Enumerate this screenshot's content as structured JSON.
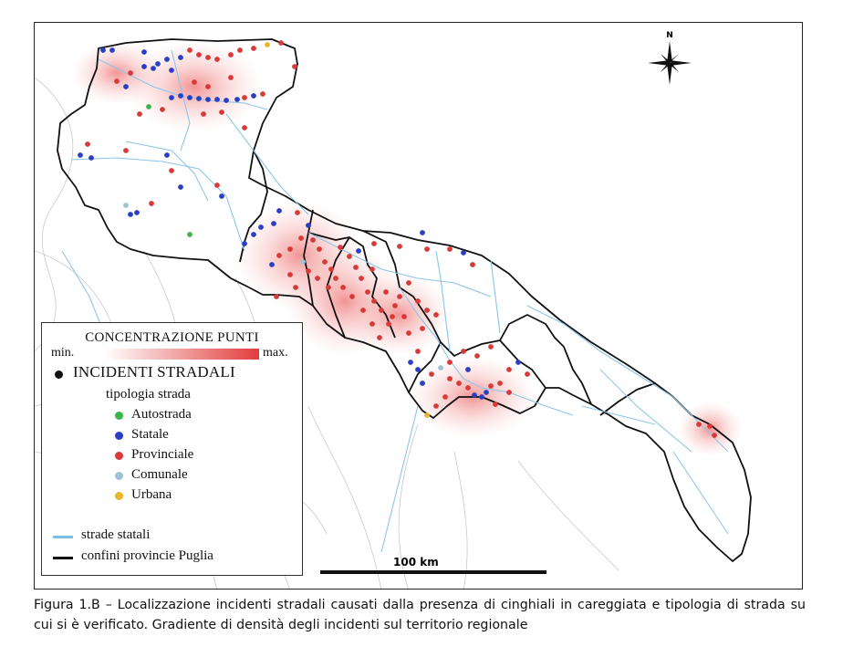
{
  "map": {
    "scale_label": "100 km",
    "north_label": "N",
    "legend": {
      "title": "CONCENTRAZIONE PUNTI",
      "gradient_min": "min.",
      "gradient_max": "max.",
      "incidents_label": "INCIDENTI STRADALI",
      "road_type_label": "tipologia strada",
      "road_types": [
        {
          "label": "Autostrada",
          "color": "#3cb54a"
        },
        {
          "label": "Statale",
          "color": "#2b3fc4"
        },
        {
          "label": "Provinciale",
          "color": "#d83a3a"
        },
        {
          "label": "Comunale",
          "color": "#9fc3d6"
        },
        {
          "label": "Urbana",
          "color": "#e7b62a"
        }
      ],
      "lines": [
        {
          "label": "strade statali",
          "color": "#7fbfe6"
        },
        {
          "label": "confini provincie Puglia",
          "color": "#111111"
        }
      ]
    }
  },
  "caption": "Figura 1.B – Localizzazione incidenti stradali causati dalla presenza di cinghiali in careggiata e tipologia di strada su cui si è verificato. Gradiente di densità degli incidenti sul territorio regionale"
}
